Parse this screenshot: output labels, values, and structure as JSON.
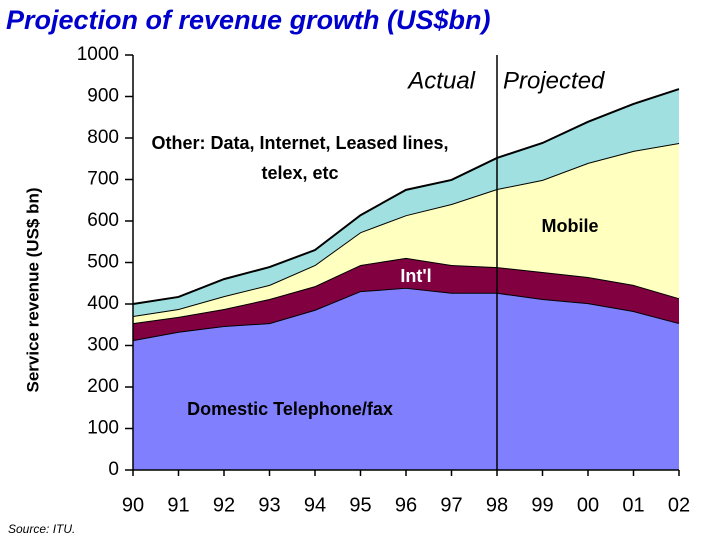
{
  "chart_data": {
    "type": "stacked_area",
    "title": "Projection of revenue growth (US$bn)",
    "y_label": "Service revenue (US$ bn)",
    "source": "Source:  ITU.",
    "annotations": {
      "actual": "Actual",
      "projected": "Projected"
    },
    "divider_category": "98",
    "categories": [
      "90",
      "91",
      "92",
      "93",
      "94",
      "95",
      "96",
      "97",
      "98",
      "99",
      "00",
      "01",
      "02"
    ],
    "series": [
      {
        "name": "Domestic Telephone/fax",
        "color": "#8080ff",
        "values": [
          313,
          333,
          347,
          354,
          386,
          431,
          439,
          427,
          427,
          412,
          402,
          383,
          354
        ]
      },
      {
        "name": "Int'l",
        "color": "#800040",
        "values": [
          41,
          36,
          41,
          58,
          57,
          63,
          72,
          67,
          62,
          65,
          63,
          63,
          60
        ]
      },
      {
        "name": "Mobile",
        "color": "#ffffc0",
        "values": [
          17,
          19,
          31,
          34,
          51,
          79,
          103,
          147,
          188,
          222,
          275,
          323,
          374
        ]
      },
      {
        "name": "Other: Data, Internet, Leased lines, telex, etc",
        "color": "#a0e0e0",
        "values": [
          29,
          29,
          41,
          43,
          36,
          41,
          61,
          58,
          75,
          89,
          99,
          113,
          130
        ]
      }
    ],
    "ylim": [
      0,
      1000
    ],
    "yticks": [
      0,
      100,
      200,
      300,
      400,
      500,
      600,
      700,
      800,
      900,
      1000
    ]
  }
}
